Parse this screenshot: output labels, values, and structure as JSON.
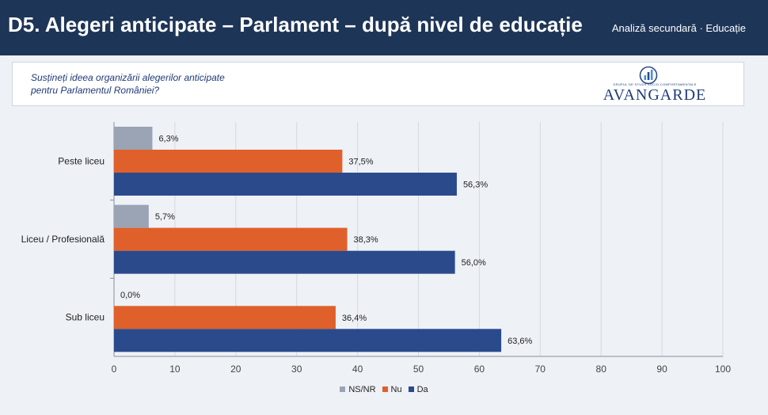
{
  "header": {
    "title": "D5. Alegeri anticipate – Parlament – după nivel de educație",
    "subtitle": "Analiză secundară · Educație"
  },
  "question": {
    "line1": "Susțineți ideea organizării alegerilor anticipate",
    "line2": "pentru Parlamentul României?"
  },
  "logo": {
    "tagline": "GRUPUL DE STUDII SOCIO-COMPORTAMENTALE",
    "word": "AVANGARDE",
    "icon": "avangarde-logo-icon"
  },
  "chart_data": {
    "type": "bar",
    "orientation": "horizontal",
    "categories": [
      "Peste liceu",
      "Liceu / Profesională",
      "Sub liceu"
    ],
    "series": [
      {
        "name": "NS/NR",
        "color": "#9aa4b5",
        "values": [
          6.3,
          5.7,
          0.0
        ],
        "labels": [
          "6,3%",
          "5,7%",
          "0,0%"
        ]
      },
      {
        "name": "Nu",
        "color": "#e0602b",
        "values": [
          37.5,
          38.3,
          36.4
        ],
        "labels": [
          "37,5%",
          "38,3%",
          "36,4%"
        ]
      },
      {
        "name": "Da",
        "color": "#2a4a8c",
        "values": [
          56.3,
          56.0,
          63.6
        ],
        "labels": [
          "56,3%",
          "56,0%",
          "63,6%"
        ]
      }
    ],
    "xlim": [
      0,
      100
    ],
    "xticks": [
      0,
      10,
      20,
      30,
      40,
      50,
      60,
      70,
      80,
      90,
      100
    ],
    "grid": true,
    "legend_position": "bottom"
  }
}
